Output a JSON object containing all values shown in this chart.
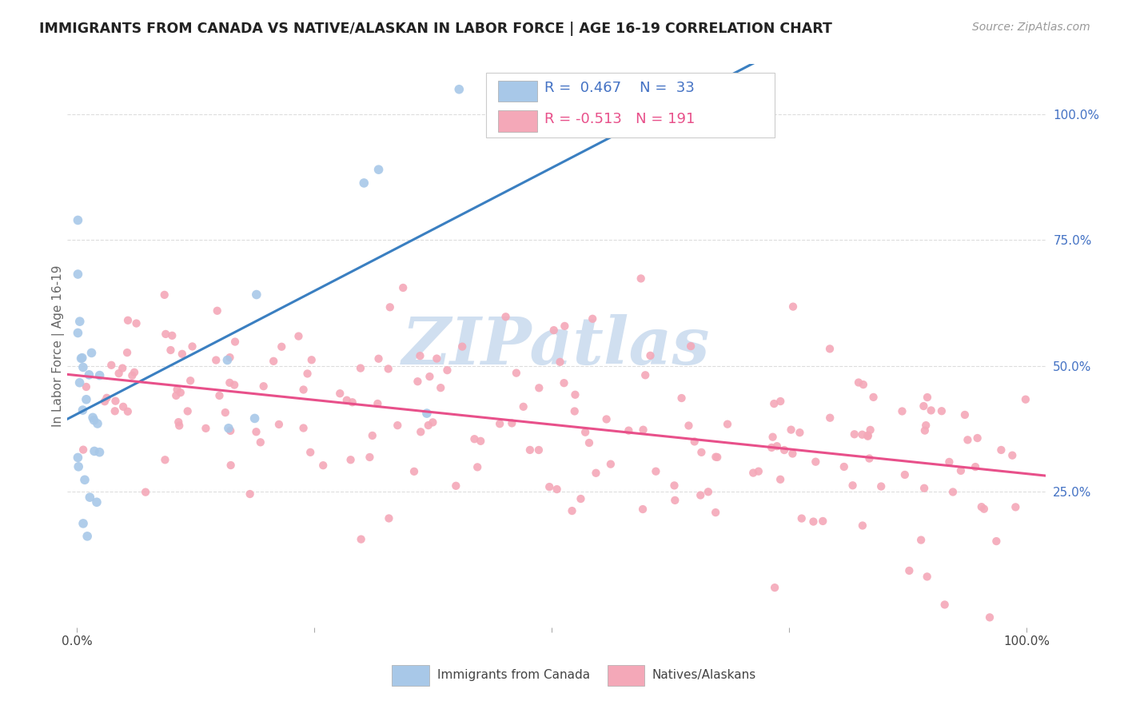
{
  "title": "IMMIGRANTS FROM CANADA VS NATIVE/ALASKAN IN LABOR FORCE | AGE 16-19 CORRELATION CHART",
  "source": "Source: ZipAtlas.com",
  "ylabel": "In Labor Force | Age 16-19",
  "ylabel_right_ticks": [
    "100.0%",
    "75.0%",
    "50.0%",
    "25.0%"
  ],
  "ylabel_right_vals": [
    1.0,
    0.75,
    0.5,
    0.25
  ],
  "legend_blue_r": "0.467",
  "legend_blue_n": "33",
  "legend_pink_r": "-0.513",
  "legend_pink_n": "191",
  "blue_color": "#a8c8e8",
  "pink_color": "#f4a8b8",
  "blue_line_color": "#3a7fc1",
  "pink_line_color": "#e8508a",
  "background_color": "#ffffff",
  "grid_color": "#dddddd",
  "watermark_text": "ZIPatlas",
  "watermark_color": "#d0dff0",
  "legend_label_blue": "Immigrants from Canada",
  "legend_label_pink": "Natives/Alaskans",
  "text_color_blue": "#4472c4",
  "text_color_pink": "#e8508a"
}
